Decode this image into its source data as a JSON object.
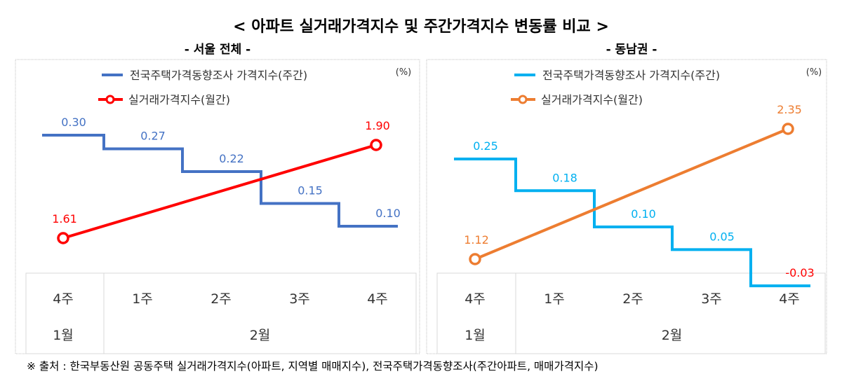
{
  "title": "< 아파트 실거래가격지수 및 주간가격지수 변동률 비교 >",
  "footer": "※ 출처 : 한국부동산원 공동주택 실거래가격지수(아파트, 지역별 매매지수), 전국주택가격동향조사(주간아파트, 매매가격지수)",
  "chart_data": [
    {
      "type": "line",
      "subtitle": "- 서울 전체 -",
      "unit": "(%)",
      "categories": [
        "4주",
        "1주",
        "2주",
        "3주",
        "4주"
      ],
      "months": [
        {
          "label": "1월",
          "span": 1
        },
        {
          "label": "2월",
          "span": 4
        }
      ],
      "series": [
        {
          "name": "전국주택가격동향조사 가격지수(주간)",
          "style": "step",
          "color": "#4472C4",
          "values": [
            0.3,
            0.27,
            0.22,
            0.15,
            0.1
          ],
          "label_colors": [
            "#4472C4",
            "#4472C4",
            "#4472C4",
            "#4472C4",
            "#4472C4"
          ]
        },
        {
          "name": "실거래가격지수(월간)",
          "style": "line-marker",
          "color": "#FF0000",
          "points": [
            {
              "category_index": 0,
              "value": 1.61
            },
            {
              "category_index": 4,
              "value": 1.9
            }
          ]
        }
      ]
    },
    {
      "type": "line",
      "subtitle": "- 동남권 -",
      "unit": "(%)",
      "categories": [
        "4주",
        "1주",
        "2주",
        "3주",
        "4주"
      ],
      "months": [
        {
          "label": "1월",
          "span": 1
        },
        {
          "label": "2월",
          "span": 4
        }
      ],
      "series": [
        {
          "name": "전국주택가격동향조사 가격지수(주간)",
          "style": "step",
          "color": "#00B0F0",
          "values": [
            0.25,
            0.18,
            0.1,
            0.05,
            -0.03
          ],
          "label_colors": [
            "#00B0F0",
            "#00B0F0",
            "#00B0F0",
            "#00B0F0",
            "#FF0000"
          ]
        },
        {
          "name": "실거래가격지수(월간)",
          "style": "line-marker",
          "color": "#ED7D31",
          "points": [
            {
              "category_index": 0,
              "value": 1.12
            },
            {
              "category_index": 4,
              "value": 2.35
            }
          ]
        }
      ]
    }
  ]
}
